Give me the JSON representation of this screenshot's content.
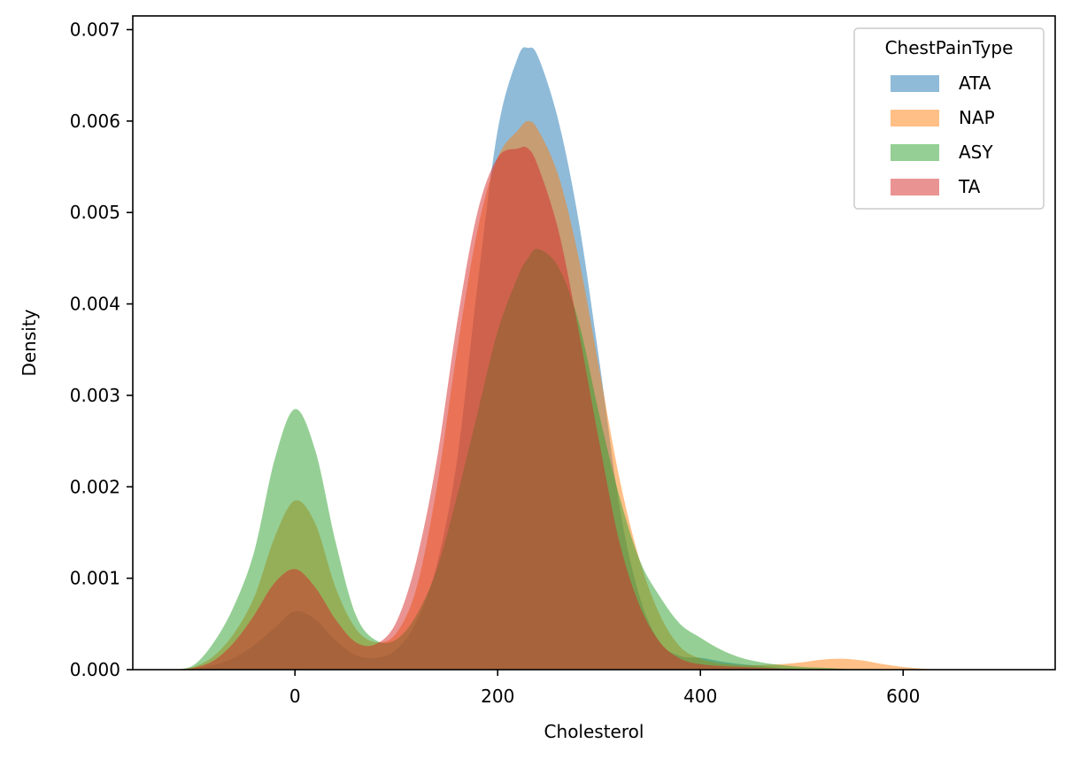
{
  "chart_data": {
    "type": "area",
    "chart_kind": "kde",
    "xlabel": "Cholesterol",
    "ylabel": "Density",
    "xlim": [
      -160,
      750
    ],
    "ylim": [
      0,
      0.00715
    ],
    "xticks": [
      0,
      200,
      400,
      600
    ],
    "xtick_labels": [
      "0",
      "200",
      "400",
      "600"
    ],
    "yticks": [
      0,
      0.001,
      0.002,
      0.003,
      0.004,
      0.005,
      0.006,
      0.007
    ],
    "ytick_labels": [
      "0.000",
      "0.001",
      "0.002",
      "0.003",
      "0.004",
      "0.005",
      "0.006",
      "0.007"
    ],
    "grid": false,
    "legend": {
      "title": "ChestPainType",
      "placement": "top-right"
    },
    "x": [
      -120,
      -100,
      -80,
      -60,
      -40,
      -20,
      0,
      20,
      40,
      60,
      80,
      100,
      120,
      140,
      160,
      180,
      200,
      220,
      230,
      240,
      260,
      280,
      300,
      320,
      340,
      360,
      380,
      400,
      420,
      440,
      460,
      480,
      500,
      520,
      540,
      560,
      580,
      600,
      620,
      650,
      700
    ],
    "series": [
      {
        "name": "ATA",
        "color": "#1f77b4",
        "values": [
          0,
          1e-05,
          5e-05,
          0.00013,
          0.00027,
          0.00046,
          0.00064,
          0.00055,
          0.00032,
          0.00016,
          0.00013,
          0.00022,
          0.00053,
          0.00115,
          0.0023,
          0.0042,
          0.0059,
          0.0067,
          0.0068,
          0.0067,
          0.006,
          0.0049,
          0.0034,
          0.0018,
          0.0008,
          0.0003,
          0.00015,
          0.00013,
          9e-05,
          6e-05,
          4e-05,
          2e-05,
          1e-05,
          0,
          0,
          0,
          0,
          0,
          0,
          0,
          0
        ]
      },
      {
        "name": "NAP",
        "color": "#ff7f0e",
        "values": [
          0,
          3e-05,
          0.00015,
          0.0004,
          0.0008,
          0.00145,
          0.00185,
          0.0016,
          0.0009,
          0.00045,
          0.0003,
          0.0004,
          0.0009,
          0.002,
          0.0035,
          0.0048,
          0.0056,
          0.0059,
          0.006,
          0.0059,
          0.0054,
          0.0045,
          0.0033,
          0.0021,
          0.0012,
          0.0006,
          0.00025,
          0.00012,
          7e-05,
          5e-05,
          5e-05,
          6e-05,
          8e-05,
          0.00011,
          0.00012,
          0.0001,
          6e-05,
          3e-05,
          1e-05,
          0,
          0
        ]
      },
      {
        "name": "ASY",
        "color": "#2ca02c",
        "values": [
          0,
          5e-05,
          0.0003,
          0.0007,
          0.0013,
          0.0023,
          0.00285,
          0.0024,
          0.0014,
          0.0006,
          0.00032,
          0.00033,
          0.0006,
          0.0011,
          0.0019,
          0.0028,
          0.0037,
          0.0043,
          0.0045,
          0.0046,
          0.0044,
          0.0038,
          0.0028,
          0.0019,
          0.0012,
          0.0008,
          0.0005,
          0.00035,
          0.00022,
          0.00013,
          8e-05,
          5e-05,
          3e-05,
          2e-05,
          1e-05,
          0,
          0,
          0,
          0,
          0,
          0
        ]
      },
      {
        "name": "TA",
        "color": "#d62728",
        "values": [
          0,
          2e-05,
          0.0001,
          0.0003,
          0.0006,
          0.00095,
          0.0011,
          0.0009,
          0.00055,
          0.0003,
          0.00028,
          0.00052,
          0.0012,
          0.0023,
          0.0038,
          0.005,
          0.0056,
          0.0057,
          0.0057,
          0.0055,
          0.0048,
          0.0037,
          0.0025,
          0.0014,
          0.0007,
          0.0003,
          0.00012,
          6e-05,
          4e-05,
          3e-05,
          2e-05,
          1e-05,
          0,
          0,
          0,
          0,
          0,
          0,
          0,
          0,
          0
        ]
      }
    ]
  }
}
